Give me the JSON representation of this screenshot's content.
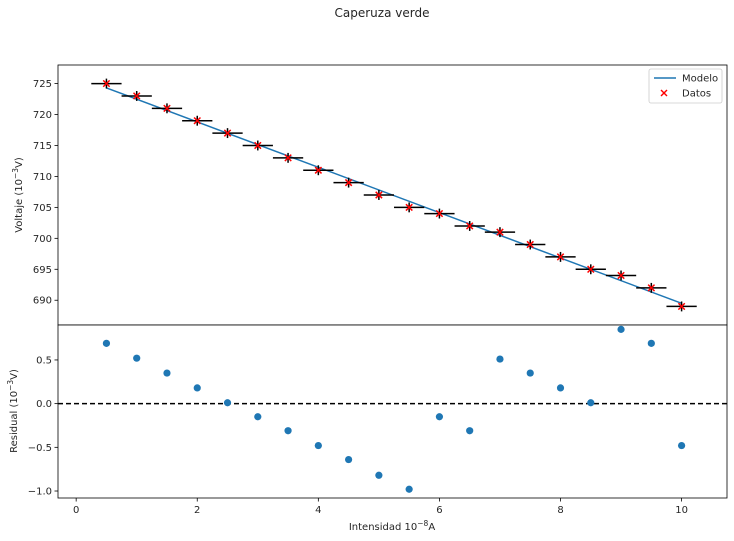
{
  "figure": {
    "title": "Caperuza verde"
  },
  "chart_data": [
    {
      "type": "scatter",
      "panel": "top",
      "ylabel_main": "Voltaje (10",
      "ylabel_exp": "−3",
      "ylabel_tail": "V)",
      "xlim": [
        -0.3,
        10.75
      ],
      "ylim": [
        686.0,
        728.0
      ],
      "yticks": [
        690,
        695,
        700,
        705,
        710,
        715,
        720,
        725
      ],
      "grid": false,
      "legend": {
        "placement": "top-right",
        "entries": [
          {
            "name": "Modelo",
            "marker": "line",
            "color": "#1f77b4"
          },
          {
            "name": "Datos",
            "marker": "x",
            "color": "#ff0000"
          }
        ]
      },
      "data_points": {
        "name": "Datos",
        "x": [
          0.5,
          1.0,
          1.5,
          2.0,
          2.5,
          3.0,
          3.5,
          4.0,
          4.5,
          5.0,
          5.5,
          6.0,
          6.5,
          7.0,
          7.5,
          8.0,
          8.5,
          9.0,
          9.5,
          10.0
        ],
        "y": [
          725,
          723,
          721,
          719,
          717,
          715,
          713,
          711,
          709,
          707,
          705,
          704,
          702,
          701,
          699,
          697,
          695,
          694,
          692,
          689
        ],
        "xerr": 0.25,
        "yerr": 0.8
      },
      "model_line": {
        "name": "Modelo",
        "x": [
          0.5,
          10.0
        ],
        "y": [
          724.3,
          689.5
        ]
      }
    },
    {
      "type": "scatter",
      "panel": "bottom",
      "xlabel_main": "Intensidad 10",
      "xlabel_exp": "−8",
      "xlabel_tail": "A",
      "ylabel_main": "Residual (10",
      "ylabel_exp": "−3",
      "ylabel_tail": "V)",
      "xlim": [
        -0.3,
        10.75
      ],
      "ylim": [
        -1.08,
        0.9
      ],
      "xticks": [
        0,
        2,
        4,
        6,
        8,
        10
      ],
      "ytick_values": [
        0.5,
        0.0,
        -0.5,
        -1.0
      ],
      "ytick_labels": [
        "0.5",
        "0.0",
        "−0.5",
        "−1.0"
      ],
      "reference_line_y": 0,
      "grid": false,
      "residuals": {
        "x": [
          0.5,
          1.0,
          1.5,
          2.0,
          2.5,
          3.0,
          3.5,
          4.0,
          4.5,
          5.0,
          5.5,
          6.0,
          6.5,
          7.0,
          7.5,
          8.0,
          8.5,
          9.0,
          9.5,
          10.0
        ],
        "y": [
          0.69,
          0.52,
          0.35,
          0.18,
          0.01,
          -0.15,
          -0.31,
          -0.48,
          -0.64,
          -0.82,
          -0.98,
          -0.15,
          -0.31,
          0.51,
          0.35,
          0.18,
          0.01,
          0.85,
          0.69,
          -0.48
        ]
      }
    }
  ],
  "colors": {
    "model": "#1f77b4",
    "data_marker": "#ff0000",
    "errorbar": "#000000",
    "residual": "#1f77b4"
  }
}
